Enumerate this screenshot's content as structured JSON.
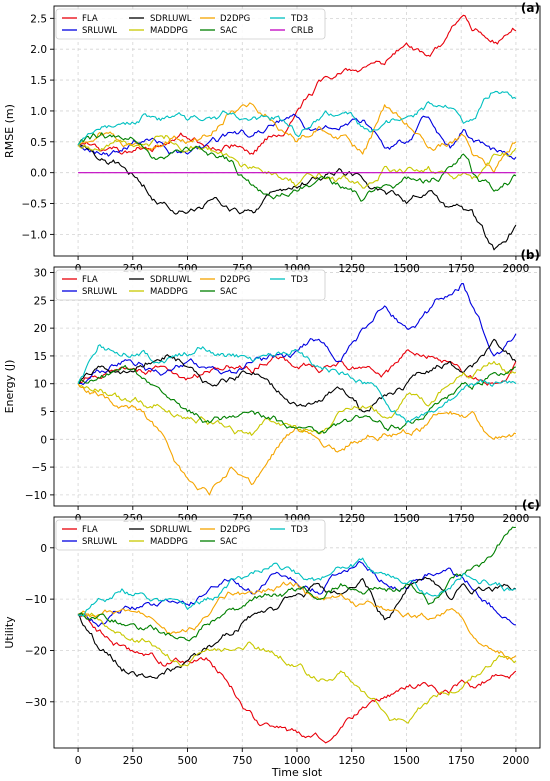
{
  "figure": {
    "shared_xlabel": "Time slot",
    "x_ticks": [
      0,
      250,
      500,
      750,
      1000,
      1250,
      1500,
      1750,
      2000
    ],
    "colors": {
      "FLA": "#e8000b",
      "SRLUWL": "#0000e0",
      "SDRLUWL": "#000000",
      "MADDPG": "#c8c800",
      "D2DPG": "#f5a500",
      "SAC": "#008000",
      "TD3": "#00c0c0",
      "CRLB": "#c000c0"
    }
  },
  "chart_data": [
    {
      "type": "line",
      "panel_label": "(a)",
      "xlabel": "",
      "ylabel": "RMSE (m)",
      "xlim": [
        -110,
        2110
      ],
      "ylim": [
        -1.35,
        2.7
      ],
      "y_ticks": [
        -1.0,
        -0.5,
        0.0,
        0.5,
        1.0,
        1.5,
        2.0,
        2.5
      ],
      "y_tick_labels": [
        "−1.0",
        "−0.5",
        "0.0",
        "0.5",
        "1.0",
        "1.5",
        "2.0",
        "2.5"
      ],
      "legend": [
        "FLA",
        "SRLUWL",
        "SDRLUWL",
        "MADDPG",
        "D2DPG",
        "SAC",
        "TD3",
        "CRLB"
      ],
      "x": [
        0,
        100,
        200,
        300,
        400,
        500,
        600,
        700,
        800,
        900,
        1000,
        1100,
        1200,
        1300,
        1400,
        1500,
        1600,
        1700,
        1760,
        1800,
        1900,
        2000
      ],
      "series": [
        {
          "name": "FLA",
          "values": [
            0.45,
            0.35,
            0.3,
            0.4,
            0.45,
            0.55,
            0.4,
            0.45,
            0.3,
            0.6,
            1.0,
            1.5,
            1.6,
            1.7,
            1.75,
            2.1,
            1.9,
            2.3,
            2.55,
            2.3,
            2.1,
            2.3
          ]
        },
        {
          "name": "SRLUWL",
          "values": [
            0.45,
            0.3,
            0.35,
            0.5,
            0.4,
            0.3,
            0.5,
            0.65,
            0.6,
            0.8,
            0.9,
            0.7,
            0.75,
            0.85,
            0.4,
            0.5,
            0.9,
            0.4,
            0.7,
            0.55,
            0.4,
            0.25
          ]
        },
        {
          "name": "SDRLUWL",
          "values": [
            0.45,
            0.2,
            0.1,
            -0.2,
            -0.5,
            -0.65,
            -0.45,
            -0.6,
            -0.65,
            -0.3,
            -0.25,
            -0.1,
            0.05,
            -0.1,
            -0.3,
            -0.5,
            -0.3,
            -0.55,
            -0.6,
            -0.6,
            -1.25,
            -0.85
          ]
        },
        {
          "name": "MADDPG",
          "values": [
            0.45,
            0.35,
            0.5,
            0.45,
            0.6,
            0.35,
            0.4,
            0.25,
            0.1,
            0.0,
            -0.2,
            0.0,
            -0.1,
            -0.25,
            0.1,
            0.05,
            0.1,
            -0.05,
            0.0,
            -0.1,
            0.3,
            0.4
          ]
        },
        {
          "name": "D2DPG",
          "values": [
            0.45,
            0.65,
            0.45,
            0.4,
            0.5,
            0.5,
            0.6,
            1.0,
            1.1,
            0.8,
            0.5,
            0.75,
            0.6,
            0.3,
            1.1,
            0.8,
            0.4,
            0.5,
            0.6,
            0.3,
            0.0,
            0.5
          ]
        },
        {
          "name": "SAC",
          "values": [
            0.45,
            0.6,
            0.55,
            0.4,
            0.25,
            0.4,
            0.3,
            0.2,
            -0.2,
            -0.4,
            -0.3,
            -0.1,
            -0.25,
            -0.45,
            -0.2,
            -0.1,
            -0.15,
            0.1,
            0.3,
            0.0,
            -0.3,
            -0.05
          ]
        },
        {
          "name": "TD3",
          "values": [
            0.45,
            0.7,
            0.8,
            0.95,
            0.9,
            0.85,
            0.9,
            0.95,
            0.9,
            0.9,
            0.6,
            0.85,
            0.95,
            0.75,
            0.8,
            0.9,
            1.15,
            1.05,
            0.8,
            0.85,
            1.3,
            1.2
          ]
        },
        {
          "name": "CRLB",
          "values": [
            0.0,
            0.0,
            0.0,
            0.0,
            0.0,
            0.0,
            0.0,
            0.0,
            0.0,
            0.0,
            0.0,
            0.0,
            0.0,
            0.0,
            0.0,
            0.0,
            0.0,
            0.0,
            0.0,
            0.0,
            0.0,
            0.0
          ]
        }
      ]
    },
    {
      "type": "line",
      "panel_label": "(b)",
      "xlabel": "",
      "ylabel": "Energy (J)",
      "xlim": [
        -110,
        2110
      ],
      "ylim": [
        -12,
        31
      ],
      "y_ticks": [
        -10,
        -5,
        0,
        5,
        10,
        15,
        20,
        25,
        30
      ],
      "y_tick_labels": [
        "−10",
        "−5",
        "0",
        "5",
        "10",
        "15",
        "20",
        "25",
        "30"
      ],
      "legend": [
        "FLA",
        "SRLUWL",
        "SDRLUWL",
        "MADDPG",
        "D2DPG",
        "SAC",
        "TD3"
      ],
      "x": [
        0,
        100,
        200,
        300,
        400,
        500,
        600,
        700,
        800,
        900,
        1000,
        1100,
        1200,
        1300,
        1400,
        1500,
        1600,
        1700,
        1760,
        1800,
        1900,
        2000
      ],
      "series": [
        {
          "name": "FLA",
          "values": [
            10,
            11,
            13,
            12,
            13,
            11,
            12,
            13,
            12,
            15,
            13,
            12,
            14,
            13,
            12,
            16,
            15,
            14,
            12,
            11,
            10,
            14
          ]
        },
        {
          "name": "SRLUWL",
          "values": [
            10,
            12,
            14,
            13,
            12,
            14,
            13,
            12,
            14,
            15,
            16,
            18,
            14,
            20,
            24,
            20,
            23,
            26,
            28,
            24,
            15,
            19
          ]
        },
        {
          "name": "SDRLUWL",
          "values": [
            10,
            13,
            12,
            13,
            15,
            13,
            10,
            11,
            12,
            9,
            6,
            7,
            9,
            5,
            8,
            10,
            12,
            14,
            12,
            13,
            18,
            14
          ]
        },
        {
          "name": "MADDPG",
          "values": [
            10,
            9,
            7,
            6,
            5,
            4,
            3,
            2,
            1,
            3,
            2,
            1,
            5,
            6,
            4,
            8,
            6,
            10,
            12,
            11,
            14,
            12
          ]
        },
        {
          "name": "D2DPG",
          "values": [
            10,
            8,
            6,
            5,
            0,
            -7,
            -10,
            -5,
            -8,
            -2,
            2,
            0,
            -2,
            0,
            1,
            1,
            3,
            5,
            4,
            5,
            0,
            1
          ]
        },
        {
          "name": "SAC",
          "values": [
            10,
            11,
            13,
            11,
            8,
            5,
            3,
            4,
            5,
            4,
            2,
            1,
            3,
            4,
            2,
            3,
            5,
            8,
            10,
            9,
            12,
            13
          ]
        },
        {
          "name": "TD3",
          "values": [
            10,
            17,
            15,
            16,
            14,
            15,
            16,
            15,
            14,
            15,
            16,
            13,
            12,
            10,
            7,
            3,
            5,
            7,
            9,
            10,
            10,
            10
          ]
        }
      ]
    },
    {
      "type": "line",
      "panel_label": "(c)",
      "xlabel": "Time slot",
      "ylabel": "Utility",
      "xlim": [
        -110,
        2110
      ],
      "ylim": [
        -39,
        6
      ],
      "y_ticks": [
        -30,
        -20,
        -10,
        0
      ],
      "y_tick_labels": [
        "−30",
        "−20",
        "−10",
        "0"
      ],
      "legend": [
        "FLA",
        "SRLUWL",
        "SDRLUWL",
        "MADDPG",
        "D2DPG",
        "SAC",
        "TD3"
      ],
      "x": [
        0,
        100,
        200,
        300,
        400,
        500,
        600,
        700,
        800,
        900,
        1000,
        1100,
        1200,
        1300,
        1400,
        1500,
        1600,
        1700,
        1760,
        1800,
        1900,
        2000
      ],
      "series": [
        {
          "name": "FLA",
          "values": [
            -13,
            -16,
            -19,
            -21,
            -23,
            -22,
            -22,
            -27,
            -33,
            -35,
            -36,
            -37,
            -35,
            -31,
            -29,
            -27,
            -27,
            -28,
            -26,
            -27,
            -25,
            -24
          ]
        },
        {
          "name": "SRLUWL",
          "values": [
            -13,
            -15,
            -12,
            -11,
            -10,
            -11,
            -8,
            -6,
            -9,
            -5,
            -7,
            -9,
            -5,
            -3,
            -7,
            -8,
            -5,
            -4,
            -6,
            -8,
            -12,
            -15
          ]
        },
        {
          "name": "SDRLUWL",
          "values": [
            -13,
            -20,
            -24,
            -25,
            -24,
            -22,
            -19,
            -17,
            -13,
            -12,
            -9,
            -7,
            -9,
            -6,
            -14,
            -8,
            -6,
            -10,
            -7,
            -9,
            -8,
            -8
          ]
        },
        {
          "name": "MADDPG",
          "values": [
            -13,
            -14,
            -17,
            -18,
            -21,
            -23,
            -20,
            -20,
            -19,
            -21,
            -23,
            -26,
            -24,
            -28,
            -32,
            -34,
            -30,
            -28,
            -27,
            -25,
            -22,
            -22
          ]
        },
        {
          "name": "D2DPG",
          "values": [
            -13,
            -13,
            -12,
            -13,
            -16,
            -16,
            -13,
            -9,
            -9,
            -8,
            -7,
            -10,
            -9,
            -11,
            -12,
            -13,
            -14,
            -12,
            -14,
            -17,
            -20,
            -21
          ]
        },
        {
          "name": "SAC",
          "values": [
            -13,
            -13,
            -15,
            -16,
            -17,
            -18,
            -15,
            -12,
            -10,
            -9,
            -8,
            -10,
            -7,
            -9,
            -8,
            -7,
            -11,
            -6,
            -5,
            -4,
            -1,
            4
          ]
        },
        {
          "name": "TD3",
          "values": [
            -13,
            -10,
            -8,
            -9,
            -10,
            -12,
            -10,
            -6,
            -5,
            -3,
            -5,
            -6,
            -4,
            -2,
            -5,
            -7,
            -9,
            -8,
            -5,
            -6,
            -7,
            -8
          ]
        }
      ]
    }
  ]
}
